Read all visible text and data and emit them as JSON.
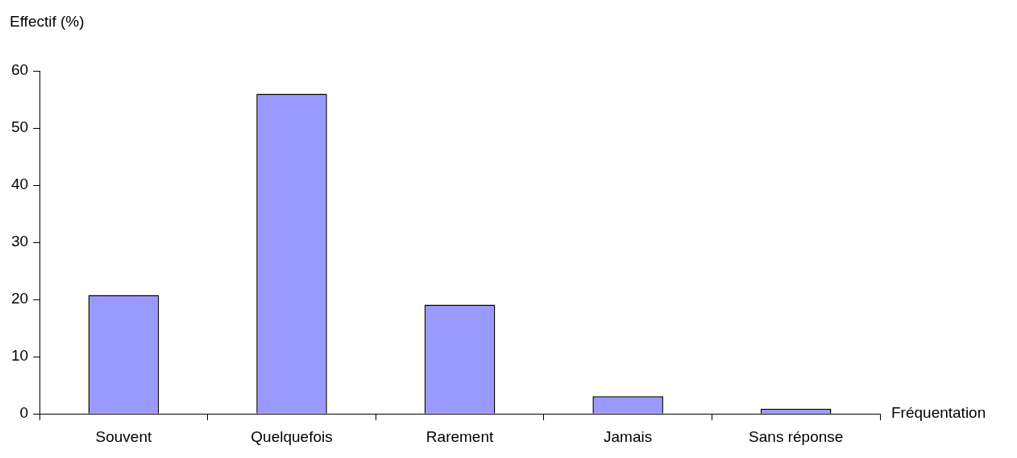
{
  "chart_data": {
    "type": "bar",
    "xlabel": "Fréquentation",
    "ylabel": "Effectif (%)",
    "categories": [
      "Souvent",
      "Quelquefois",
      "Rarement",
      "Jamais",
      "Sans réponse"
    ],
    "values": [
      20.8,
      56.0,
      19.1,
      3.1,
      0.9
    ],
    "color": "#9999ff",
    "ylim": [
      0,
      60
    ],
    "yticks": [
      0,
      10,
      20,
      30,
      40,
      50,
      60
    ]
  }
}
